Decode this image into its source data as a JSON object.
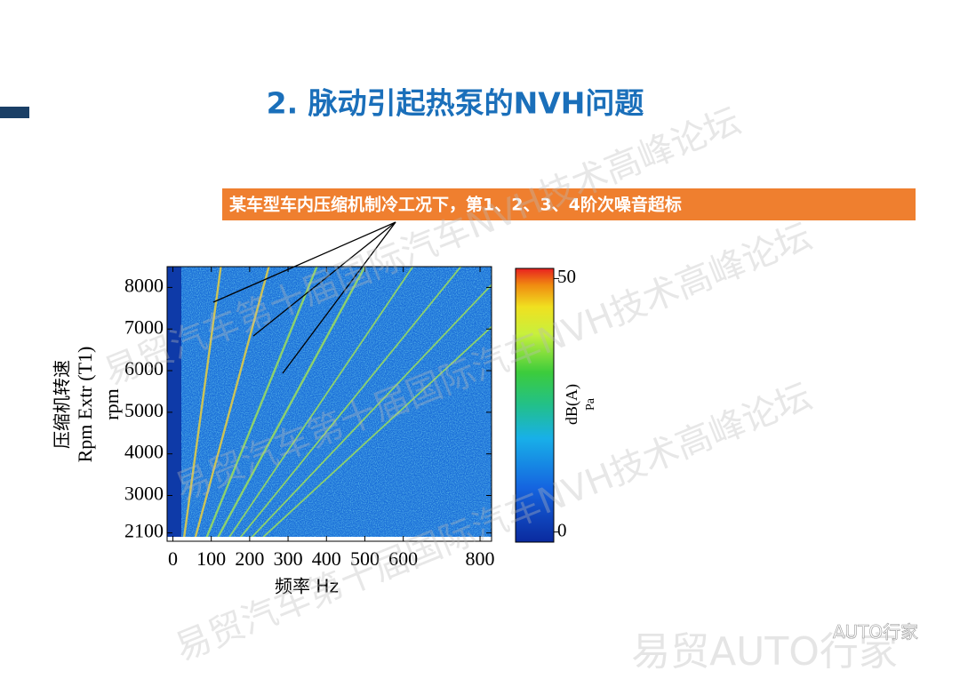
{
  "slide_title": "2. 脉动引起热泵的NVH问题",
  "callout": "某车型车内压缩机制冷工况下，第1、2、3、4阶次噪音超标",
  "watermarks": [
    "易贸汽车第十届国际汽车NVH技术高峰论坛",
    "易贸汽车第十届国际汽车NVH技术高峰论坛",
    "易贸汽车第十届国际汽车NVH技术高峰论坛",
    "易贸AUTO行家",
    "AUTO行家"
  ],
  "chart_data": {
    "type": "spectrogram",
    "ylabel": [
      "压缩机转速",
      "Rpm Extr (T1)",
      "rpm"
    ],
    "xlabel": "频率 Hz",
    "xlim": [
      -15,
      830
    ],
    "xticks": [
      0,
      100,
      200,
      300,
      400,
      500,
      600,
      800
    ],
    "ylim": [
      1900,
      8500
    ],
    "yticks": [
      2100,
      3000,
      4000,
      5000,
      6000,
      7000,
      8000
    ],
    "colorbar_label": [
      "dB(A)",
      "Pa"
    ],
    "clim": [
      -2,
      52
    ],
    "cticks": [
      0,
      50
    ]
  }
}
